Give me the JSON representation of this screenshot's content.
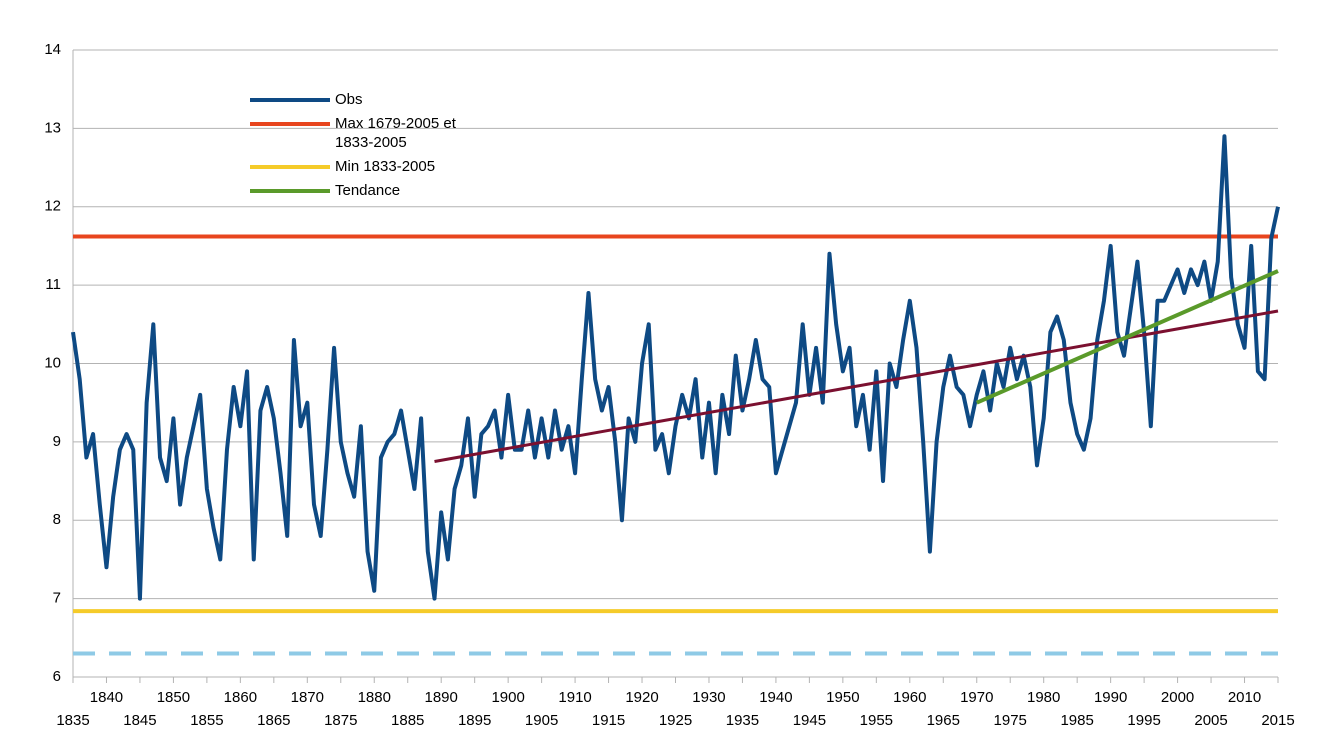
{
  "chart_data": {
    "type": "line",
    "xlim": [
      1835,
      2015
    ],
    "xticks": [
      1835,
      1840,
      1845,
      1850,
      1855,
      1860,
      1865,
      1870,
      1875,
      1880,
      1885,
      1890,
      1895,
      1900,
      1905,
      1910,
      1915,
      1920,
      1925,
      1930,
      1935,
      1940,
      1945,
      1950,
      1955,
      1960,
      1965,
      1970,
      1975,
      1980,
      1985,
      1990,
      1995,
      2000,
      2005,
      2010,
      2015
    ],
    "ylim": [
      6,
      14
    ],
    "yticks": [
      6,
      7,
      8,
      9,
      10,
      11,
      12,
      13,
      14
    ],
    "grid": true,
    "series": [
      {
        "name": "Max 1679-2005 et 1833-2005",
        "color": "#e8451e",
        "x": [
          1835,
          2015
        ],
        "values": [
          11.62,
          11.62
        ]
      },
      {
        "name": "Min 1833-2005",
        "color": "#f5cb29",
        "x": [
          1835,
          2015
        ],
        "values": [
          6.84,
          6.84
        ]
      },
      {
        "color": "#8ecae6",
        "dash": true,
        "x": [
          1835,
          2015
        ],
        "values": [
          6.3,
          6.3
        ]
      },
      {
        "name": "Obs",
        "color": "#0e4a84",
        "x": [
          1835,
          1836,
          1837,
          1838,
          1839,
          1840,
          1841,
          1842,
          1843,
          1844,
          1845,
          1846,
          1847,
          1848,
          1849,
          1850,
          1851,
          1852,
          1853,
          1854,
          1855,
          1856,
          1857,
          1858,
          1859,
          1860,
          1861,
          1862,
          1863,
          1864,
          1865,
          1866,
          1867,
          1868,
          1869,
          1870,
          1871,
          1872,
          1873,
          1874,
          1875,
          1876,
          1877,
          1878,
          1879,
          1880,
          1881,
          1882,
          1883,
          1884,
          1885,
          1886,
          1887,
          1888,
          1889,
          1890,
          1891,
          1892,
          1893,
          1894,
          1895,
          1896,
          1897,
          1898,
          1899,
          1900,
          1901,
          1902,
          1903,
          1904,
          1905,
          1906,
          1907,
          1908,
          1909,
          1910,
          1911,
          1912,
          1913,
          1914,
          1915,
          1916,
          1917,
          1918,
          1919,
          1920,
          1921,
          1922,
          1923,
          1924,
          1925,
          1926,
          1927,
          1928,
          1929,
          1930,
          1931,
          1932,
          1933,
          1934,
          1935,
          1936,
          1937,
          1938,
          1939,
          1940,
          1941,
          1942,
          1943,
          1944,
          1945,
          1946,
          1947,
          1948,
          1949,
          1950,
          1951,
          1952,
          1953,
          1954,
          1955,
          1956,
          1957,
          1958,
          1959,
          1960,
          1961,
          1962,
          1963,
          1964,
          1965,
          1966,
          1967,
          1968,
          1969,
          1970,
          1971,
          1972,
          1973,
          1974,
          1975,
          1976,
          1977,
          1978,
          1979,
          1980,
          1981,
          1982,
          1983,
          1984,
          1985,
          1986,
          1987,
          1988,
          1989,
          1990,
          1991,
          1992,
          1993,
          1994,
          1995,
          1996,
          1997,
          1998,
          1999,
          2000,
          2001,
          2002,
          2003,
          2004,
          2005,
          2006,
          2007,
          2008,
          2009,
          2010,
          2011,
          2012,
          2013,
          2014,
          2015
        ],
        "values": [
          10.4,
          9.8,
          8.8,
          9.1,
          8.2,
          7.4,
          8.3,
          8.9,
          9.1,
          8.9,
          7.0,
          9.5,
          10.5,
          8.8,
          8.5,
          9.3,
          8.2,
          8.8,
          9.2,
          9.6,
          8.4,
          7.9,
          7.5,
          8.9,
          9.7,
          9.2,
          9.9,
          7.5,
          9.4,
          9.7,
          9.3,
          8.6,
          7.8,
          10.3,
          9.2,
          9.5,
          8.2,
          7.8,
          8.9,
          10.2,
          9.0,
          8.6,
          8.3,
          9.2,
          7.6,
          7.1,
          8.8,
          9.0,
          9.1,
          9.4,
          8.9,
          8.4,
          9.3,
          7.6,
          7.0,
          8.1,
          7.5,
          8.4,
          8.7,
          9.3,
          8.3,
          9.1,
          9.2,
          9.4,
          8.8,
          9.6,
          8.9,
          8.9,
          9.4,
          8.8,
          9.3,
          8.8,
          9.4,
          8.9,
          9.2,
          8.6,
          9.8,
          10.9,
          9.8,
          9.4,
          9.7,
          9.0,
          8.0,
          9.3,
          9.0,
          10.0,
          10.5,
          8.9,
          9.1,
          8.6,
          9.2,
          9.6,
          9.3,
          9.8,
          8.8,
          9.5,
          8.6,
          9.6,
          9.1,
          10.1,
          9.4,
          9.8,
          10.3,
          9.8,
          9.7,
          8.6,
          8.9,
          9.2,
          9.5,
          10.5,
          9.6,
          10.2,
          9.5,
          11.4,
          10.5,
          9.9,
          10.2,
          9.2,
          9.6,
          8.9,
          9.9,
          8.5,
          10.0,
          9.7,
          10.3,
          10.8,
          10.2,
          9.0,
          7.6,
          9.0,
          9.7,
          10.1,
          9.7,
          9.6,
          9.2,
          9.6,
          9.9,
          9.4,
          10.0,
          9.7,
          10.2,
          9.8,
          10.1,
          9.7,
          8.7,
          9.3,
          10.4,
          10.6,
          10.3,
          9.5,
          9.1,
          8.9,
          9.3,
          10.3,
          10.8,
          11.5,
          10.4,
          10.1,
          10.7,
          11.3,
          10.4,
          9.2,
          10.8,
          10.8,
          11.0,
          11.2,
          10.9,
          11.2,
          11.0,
          11.3,
          10.8,
          11.3,
          12.9,
          11.1,
          10.5,
          10.2,
          11.5,
          9.9,
          9.8,
          11.6,
          12.0
        ]
      },
      {
        "color": "#7b1030",
        "x": [
          1889,
          2015
        ],
        "values": [
          8.75,
          10.67
        ]
      },
      {
        "name": "Tendance",
        "color": "#5a9a2a",
        "x": [
          1970,
          2015
        ],
        "values": [
          9.5,
          11.18
        ]
      }
    ],
    "legend_order": [
      3,
      0,
      1,
      5
    ]
  }
}
